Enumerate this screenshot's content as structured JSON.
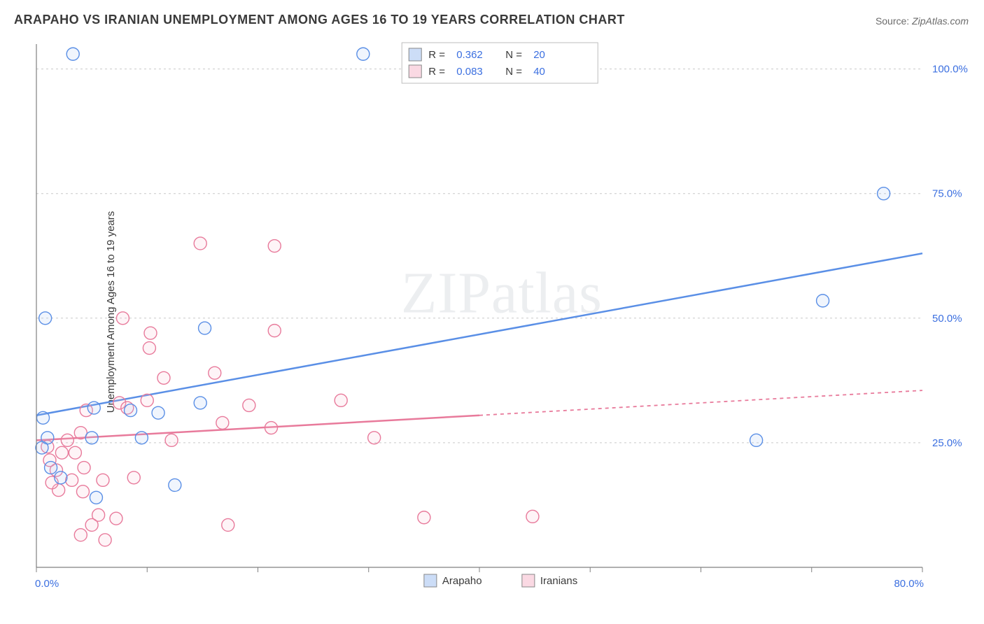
{
  "title": "ARAPAHO VS IRANIAN UNEMPLOYMENT AMONG AGES 16 TO 19 YEARS CORRELATION CHART",
  "source_label": "Source:",
  "source_value": "ZipAtlas.com",
  "y_axis_title": "Unemployment Among Ages 16 to 19 years",
  "watermark_a": "ZIP",
  "watermark_b": "atlas",
  "chart": {
    "type": "scatter",
    "xlim": [
      0,
      80
    ],
    "ylim": [
      0,
      105
    ],
    "x_ticks": [
      0,
      10,
      20,
      30,
      40,
      50,
      60,
      70,
      80
    ],
    "x_tick_labels": {
      "0": "0.0%",
      "80": "80.0%"
    },
    "y_ticks": [
      25,
      50,
      75,
      100
    ],
    "y_tick_labels": {
      "25": "25.0%",
      "50": "50.0%",
      "75": "75.0%",
      "100": "100.0%"
    },
    "background_color": "#ffffff",
    "grid_color": "#c9c9c9",
    "axis_color": "#808080",
    "tick_label_color": "#3b6fe0",
    "marker_radius": 9,
    "marker_stroke_width": 1.4,
    "marker_fill_opacity": 0.18,
    "series": [
      {
        "name": "Arapaho",
        "color_stroke": "#5a8fe6",
        "color_fill": "#aac7f2",
        "r_value": "0.362",
        "n_value": "20",
        "trend": {
          "x1": 0,
          "y1": 30.5,
          "x2": 80,
          "y2": 63,
          "solid_to_x": 80
        },
        "points": [
          {
            "x": 3.3,
            "y": 103
          },
          {
            "x": 29.5,
            "y": 103
          },
          {
            "x": 76.5,
            "y": 75
          },
          {
            "x": 71,
            "y": 53.5
          },
          {
            "x": 0.8,
            "y": 50
          },
          {
            "x": 15.2,
            "y": 48
          },
          {
            "x": 11,
            "y": 31
          },
          {
            "x": 14.8,
            "y": 33
          },
          {
            "x": 8.5,
            "y": 31.5
          },
          {
            "x": 5.2,
            "y": 32
          },
          {
            "x": 0.6,
            "y": 30
          },
          {
            "x": 65,
            "y": 25.5
          },
          {
            "x": 1,
            "y": 26
          },
          {
            "x": 5,
            "y": 26
          },
          {
            "x": 0.5,
            "y": 24
          },
          {
            "x": 9.5,
            "y": 26
          },
          {
            "x": 5.4,
            "y": 14
          },
          {
            "x": 12.5,
            "y": 16.5
          },
          {
            "x": 1.3,
            "y": 20
          },
          {
            "x": 2.2,
            "y": 18
          }
        ]
      },
      {
        "name": "Iranians",
        "color_stroke": "#e87a9b",
        "color_fill": "#f7c0d0",
        "r_value": "0.083",
        "n_value": "40",
        "trend": {
          "x1": 0,
          "y1": 25.5,
          "x2": 80,
          "y2": 35.5,
          "solid_to_x": 40
        },
        "points": [
          {
            "x": 14.8,
            "y": 65
          },
          {
            "x": 21.5,
            "y": 64.5
          },
          {
            "x": 7.8,
            "y": 50
          },
          {
            "x": 10.3,
            "y": 47
          },
          {
            "x": 21.5,
            "y": 47.5
          },
          {
            "x": 10.2,
            "y": 44
          },
          {
            "x": 16.1,
            "y": 39
          },
          {
            "x": 11.5,
            "y": 38
          },
          {
            "x": 7.5,
            "y": 33
          },
          {
            "x": 10,
            "y": 33.5
          },
          {
            "x": 27.5,
            "y": 33.5
          },
          {
            "x": 19.2,
            "y": 32.5
          },
          {
            "x": 8.2,
            "y": 32
          },
          {
            "x": 16.8,
            "y": 29
          },
          {
            "x": 21.2,
            "y": 28
          },
          {
            "x": 30.5,
            "y": 26
          },
          {
            "x": 4,
            "y": 27
          },
          {
            "x": 4.5,
            "y": 31.5
          },
          {
            "x": 2.3,
            "y": 23
          },
          {
            "x": 3.5,
            "y": 23
          },
          {
            "x": 1.2,
            "y": 21.5
          },
          {
            "x": 1.8,
            "y": 19.5
          },
          {
            "x": 4.3,
            "y": 20
          },
          {
            "x": 3.2,
            "y": 17.5
          },
          {
            "x": 2,
            "y": 15.5
          },
          {
            "x": 1.4,
            "y": 17
          },
          {
            "x": 4.2,
            "y": 15.2
          },
          {
            "x": 6,
            "y": 17.5
          },
          {
            "x": 8.8,
            "y": 18
          },
          {
            "x": 5.6,
            "y": 10.5
          },
          {
            "x": 5,
            "y": 8.5
          },
          {
            "x": 7.2,
            "y": 9.8
          },
          {
            "x": 4,
            "y": 6.5
          },
          {
            "x": 6.2,
            "y": 5.5
          },
          {
            "x": 17.3,
            "y": 8.5
          },
          {
            "x": 35,
            "y": 10
          },
          {
            "x": 44.8,
            "y": 10.2
          },
          {
            "x": 2.8,
            "y": 25.5
          },
          {
            "x": 1,
            "y": 24.2
          },
          {
            "x": 12.2,
            "y": 25.5
          }
        ]
      }
    ],
    "legend_top": {
      "r_label": "R =",
      "n_label": "N ="
    },
    "legend_bottom": {
      "series": [
        "Arapaho",
        "Iranians"
      ]
    }
  }
}
